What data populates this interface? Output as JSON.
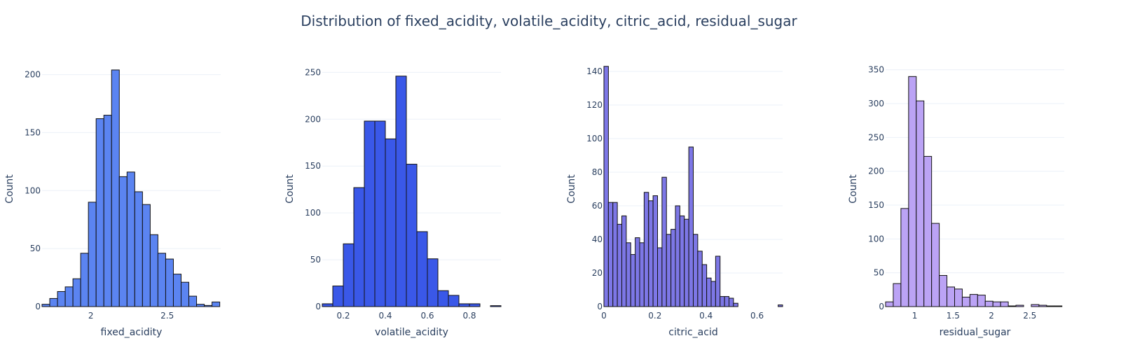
{
  "title": "Distribution of fixed_acidity, volatile_acidity, citric_acid, residual_sugar",
  "chart_data": [
    {
      "type": "bar",
      "xlabel": "fixed_acidity",
      "ylabel": "Count",
      "color": "#5b84f1",
      "xlim": [
        1.68,
        2.85
      ],
      "ylim": [
        0,
        210
      ],
      "xticks": [
        "2",
        "2.5"
      ],
      "xtick_values": [
        2,
        2.5
      ],
      "yticks": [
        "0",
        "50",
        "100",
        "150",
        "200"
      ],
      "ytick_values": [
        0,
        50,
        100,
        150,
        200
      ],
      "bin_start": 1.68,
      "bin_width": 0.0506,
      "values": [
        2,
        7,
        13,
        17,
        24,
        46,
        90,
        162,
        165,
        204,
        112,
        116,
        99,
        88,
        62,
        46,
        41,
        28,
        21,
        9,
        2,
        1,
        4
      ]
    },
    {
      "type": "bar",
      "xlabel": "volatile_acidity",
      "ylabel": "Count",
      "color": "#3a58e8",
      "xlim": [
        0.1,
        0.95
      ],
      "ylim": [
        0,
        260
      ],
      "xticks": [
        "0.2",
        "0.4",
        "0.6",
        "0.8"
      ],
      "xtick_values": [
        0.2,
        0.4,
        0.6,
        0.8
      ],
      "yticks": [
        "0",
        "50",
        "100",
        "150",
        "200",
        "250"
      ],
      "ytick_values": [
        0,
        50,
        100,
        150,
        200,
        250
      ],
      "bin_start": 0.1,
      "bin_width": 0.05,
      "values": [
        3,
        22,
        67,
        127,
        198,
        198,
        179,
        246,
        152,
        80,
        51,
        17,
        12,
        3,
        3,
        0,
        1
      ]
    },
    {
      "type": "bar",
      "xlabel": "citric_acid",
      "ylabel": "Count",
      "color": "#7d77e6",
      "xlim": [
        0,
        0.7
      ],
      "ylim": [
        0,
        145
      ],
      "xticks": [
        "0",
        "0.2",
        "0.4",
        "0.6"
      ],
      "xtick_values": [
        0,
        0.2,
        0.4,
        0.6
      ],
      "yticks": [
        "0",
        "20",
        "40",
        "60",
        "80",
        "100",
        "120",
        "140"
      ],
      "ytick_values": [
        0,
        20,
        40,
        60,
        80,
        100,
        120,
        140
      ],
      "bin_start": 0,
      "bin_width": 0.0175,
      "values": [
        143,
        62,
        62,
        49,
        54,
        38,
        31,
        41,
        38,
        68,
        63,
        66,
        35,
        77,
        43,
        46,
        60,
        54,
        52,
        95,
        43,
        33,
        25,
        17,
        15,
        30,
        6,
        6,
        5,
        2,
        0,
        0,
        0,
        0,
        0,
        0,
        0,
        0,
        0,
        1
      ]
    },
    {
      "type": "bar",
      "xlabel": "residual_sugar",
      "ylabel": "Count",
      "color": "#bba3f5",
      "xlim": [
        0.62,
        2.95
      ],
      "ylim": [
        0,
        360
      ],
      "xticks": [
        "1",
        "1.5",
        "2",
        "2.5"
      ],
      "xtick_values": [
        1,
        1.5,
        2,
        2.5
      ],
      "yticks": [
        "0",
        "50",
        "100",
        "150",
        "200",
        "250",
        "300",
        "350"
      ],
      "ytick_values": [
        0,
        50,
        100,
        150,
        200,
        250,
        300,
        350
      ],
      "bin_start": 0.62,
      "bin_width": 0.1,
      "values": [
        7,
        34,
        145,
        340,
        304,
        222,
        123,
        46,
        29,
        26,
        14,
        18,
        17,
        8,
        7,
        7,
        1,
        2,
        0,
        3,
        2,
        1,
        1
      ]
    }
  ]
}
